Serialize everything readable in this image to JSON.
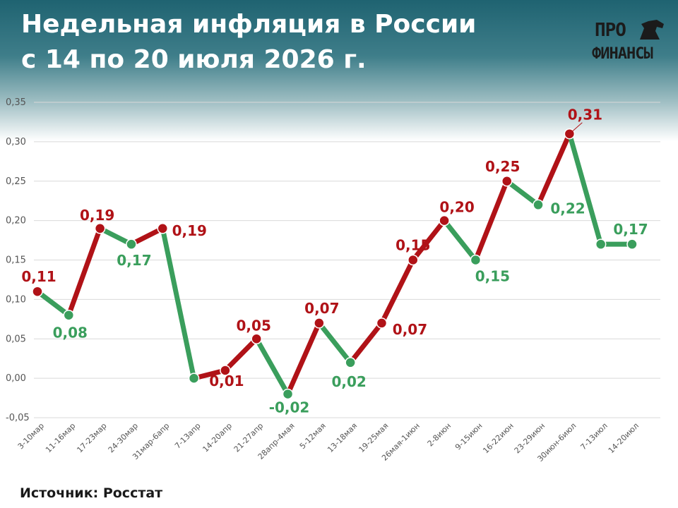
{
  "header": {
    "title_line1": "Недельная инфляция в России",
    "title_line2": "с 14 по 20 июля 2026 г."
  },
  "logo": {
    "line1": "ПРО",
    "line2": "ФИНАНСЫ",
    "icon": "horse-head-icon"
  },
  "footer": {
    "source": "Источник: Росстат"
  },
  "colors": {
    "rise": "#b01217",
    "fall": "#3a9e5c",
    "grid": "#d9d9d9",
    "header": "#1f6371"
  },
  "chart_data": {
    "type": "line",
    "title": "Недельная инфляция в России с 14 по 20 июля 2026 г.",
    "xlabel": "",
    "ylabel": "",
    "ylim": [
      -0.05,
      0.35
    ],
    "yticks": [
      "0,35",
      "0,30",
      "0,25",
      "0,20",
      "0,15",
      "0,10",
      "0,05",
      "0,00",
      "-0,05"
    ],
    "grid": true,
    "categories": [
      "3-10мар",
      "11-16мар",
      "17-23мар",
      "24-30мар",
      "31мар-6апр",
      "7-13апр",
      "14-20апр",
      "21-27апр",
      "28апр-4мая",
      "5-12мая",
      "13-18мая",
      "19-25мая",
      "26мая-1июн",
      "2-8июн",
      "9-15июн",
      "16-22июн",
      "23-29июн",
      "30июн-6июл",
      "7-13июл",
      "14-20июл"
    ],
    "series": [
      {
        "values": [
          0.11,
          0.08,
          0.19,
          0.17,
          0.19,
          0.0,
          0.01,
          0.05,
          -0.02,
          0.07,
          0.02,
          0.07,
          0.15,
          0.2,
          0.15,
          0.25,
          0.22,
          0.31,
          0.17,
          0.17
        ]
      }
    ],
    "data_labels": [
      "0,11",
      "0,08",
      "0,19",
      "0,17",
      "0,19",
      "",
      "0,01",
      "0,05",
      "-0,02",
      "0,07",
      "0,02",
      "0,07",
      "0,15",
      "0,20",
      "0,15",
      "0,25",
      "0,22",
      "0,31",
      "",
      "0,17"
    ],
    "color_rule": "segments and points rising vs previous week in red, falling or flat in green"
  }
}
